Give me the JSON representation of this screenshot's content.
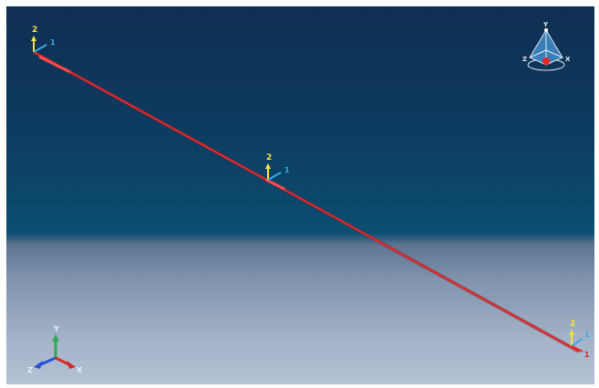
{
  "viewport": {
    "background_top": "#0f2f52",
    "background_bottom": "#b4c2d4",
    "beam_color": "#e8262a"
  },
  "triads": [
    {
      "name": "triad-start",
      "up_label": "2",
      "side_label": "1"
    },
    {
      "name": "triad-mid",
      "up_label": "2",
      "side_label": "1"
    },
    {
      "name": "triad-end",
      "up_label": "2",
      "side_label": "1",
      "extra_label": "1"
    }
  ],
  "view_cube": {
    "top_label": "Y",
    "left_label": "Z",
    "right_label": "X"
  },
  "global_triad": {
    "y_label": "Y",
    "z_label": "Z",
    "x_label": "X",
    "y_color": "#2fa84f",
    "z_color": "#2a4fd6",
    "x_color": "#d62a2a"
  }
}
